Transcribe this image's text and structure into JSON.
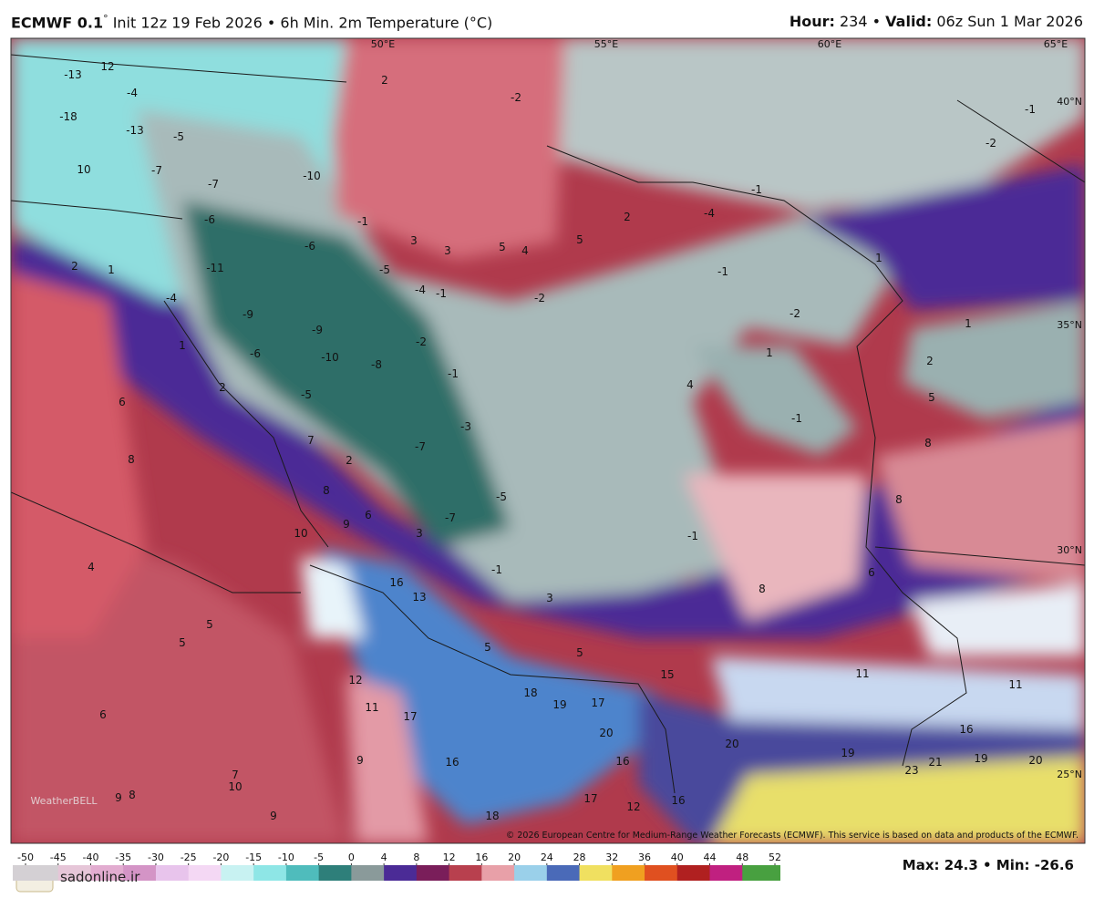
{
  "header": {
    "model": "ECMWF 0.1",
    "degree": "°",
    "info": "Init 12z 19 Feb 2026 • 6h Min. 2m Temperature (°C)",
    "hour_label": "Hour:",
    "hour": "234 •",
    "valid_label": "Valid:",
    "valid": "06z Sun 1 Mar 2026"
  },
  "map": {
    "lon_labels": [
      "50°E",
      "55°E",
      "60°E",
      "65°E"
    ],
    "lat_labels": [
      "40°N",
      "35°N",
      "30°N",
      "25°N"
    ],
    "temperature_labels": [
      -13,
      12,
      -4,
      -18,
      -13,
      -5,
      10,
      -7,
      -7,
      -6,
      -10,
      2,
      -2,
      -1,
      -2,
      -1,
      -4,
      2,
      5,
      5,
      4,
      3,
      3,
      -1,
      -6,
      -5,
      2,
      1,
      -11,
      -4,
      -4,
      -1,
      -2,
      -1,
      -2,
      1,
      1,
      -9,
      -9,
      -2,
      -6,
      -10,
      -8,
      -1,
      1,
      1,
      2,
      4,
      -1,
      5,
      6,
      -5,
      2,
      -3,
      7,
      -7,
      2,
      8,
      8,
      8,
      -5,
      8,
      6,
      9,
      10,
      -7,
      3,
      -1,
      4,
      -1,
      6,
      16,
      13,
      3,
      8,
      5,
      5,
      5,
      5,
      11,
      11,
      12,
      15,
      18,
      19,
      17,
      6,
      11,
      17,
      20,
      16,
      20,
      19,
      19,
      20,
      21,
      23,
      9,
      16,
      16,
      7,
      10,
      9,
      8,
      17,
      16,
      12,
      9,
      18
    ],
    "copyright": "© 2026 European Centre for Medium-Range Weather Forecasts (ECMWF). This service is based on data and products of the ECMWF.",
    "watermark": "WeatherBELL"
  },
  "colorbar": {
    "ticks": [
      -50,
      -45,
      -40,
      -35,
      -30,
      -25,
      -20,
      -15,
      -10,
      -5,
      0,
      4,
      8,
      12,
      16,
      20,
      24,
      28,
      32,
      36,
      40,
      44,
      48,
      52
    ],
    "colors": [
      "#d4d0d4",
      "#e6c6d8",
      "#e2acd0",
      "#d494c6",
      "#e8c4ec",
      "#f4d8f4",
      "#c8f2f2",
      "#8ee6e6",
      "#4fbcbc",
      "#2e7f7a",
      "#8a9a9a",
      "#4b2b96",
      "#7a1e5a",
      "#b8404e",
      "#e8a0a8",
      "#9ad0ea",
      "#4a6ab8",
      "#f0e060",
      "#f0a020",
      "#e05020",
      "#b02020",
      "#c02080",
      "#48a040"
    ]
  },
  "footer": {
    "stats": "Max: 24.3 • Min: -26.6",
    "site": "sadonline.ir"
  }
}
